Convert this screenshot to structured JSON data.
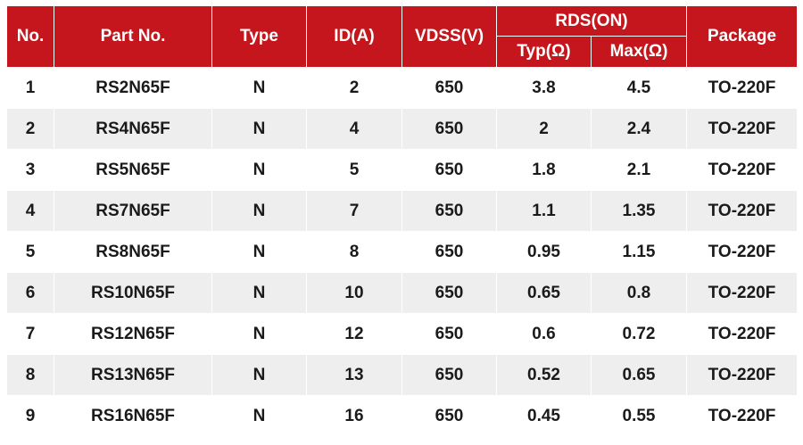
{
  "table": {
    "headers": {
      "no": "No.",
      "part_no": "Part No.",
      "type": "Type",
      "id": "ID(A)",
      "vdss": "VDSS(V)",
      "rds_on": "RDS(ON)",
      "typ": "Typ(Ω)",
      "max": "Max(Ω)",
      "package": "Package"
    },
    "rows": [
      {
        "no": "1",
        "part_no": "RS2N65F",
        "type": "N",
        "id": "2",
        "vdss": "650",
        "typ": "3.8",
        "max": "4.5",
        "package": "TO-220F"
      },
      {
        "no": "2",
        "part_no": "RS4N65F",
        "type": "N",
        "id": "4",
        "vdss": "650",
        "typ": "2",
        "max": "2.4",
        "package": "TO-220F"
      },
      {
        "no": "3",
        "part_no": "RS5N65F",
        "type": "N",
        "id": "5",
        "vdss": "650",
        "typ": "1.8",
        "max": "2.1",
        "package": "TO-220F"
      },
      {
        "no": "4",
        "part_no": "RS7N65F",
        "type": "N",
        "id": "7",
        "vdss": "650",
        "typ": "1.1",
        "max": "1.35",
        "package": "TO-220F"
      },
      {
        "no": "5",
        "part_no": "RS8N65F",
        "type": "N",
        "id": "8",
        "vdss": "650",
        "typ": "0.95",
        "max": "1.15",
        "package": "TO-220F"
      },
      {
        "no": "6",
        "part_no": "RS10N65F",
        "type": "N",
        "id": "10",
        "vdss": "650",
        "typ": "0.65",
        "max": "0.8",
        "package": "TO-220F"
      },
      {
        "no": "7",
        "part_no": "RS12N65F",
        "type": "N",
        "id": "12",
        "vdss": "650",
        "typ": "0.6",
        "max": "0.72",
        "package": "TO-220F"
      },
      {
        "no": "8",
        "part_no": "RS13N65F",
        "type": "N",
        "id": "13",
        "vdss": "650",
        "typ": "0.52",
        "max": "0.65",
        "package": "TO-220F"
      },
      {
        "no": "9",
        "part_no": "RS16N65F",
        "type": "N",
        "id": "16",
        "vdss": "650",
        "typ": "0.45",
        "max": "0.55",
        "package": "TO-220F"
      }
    ]
  },
  "colors": {
    "header_background": "#c4161c",
    "header_text": "#ffffff",
    "row_alt_background": "#eeeeee",
    "cell_text": "#1a1a1a"
  }
}
